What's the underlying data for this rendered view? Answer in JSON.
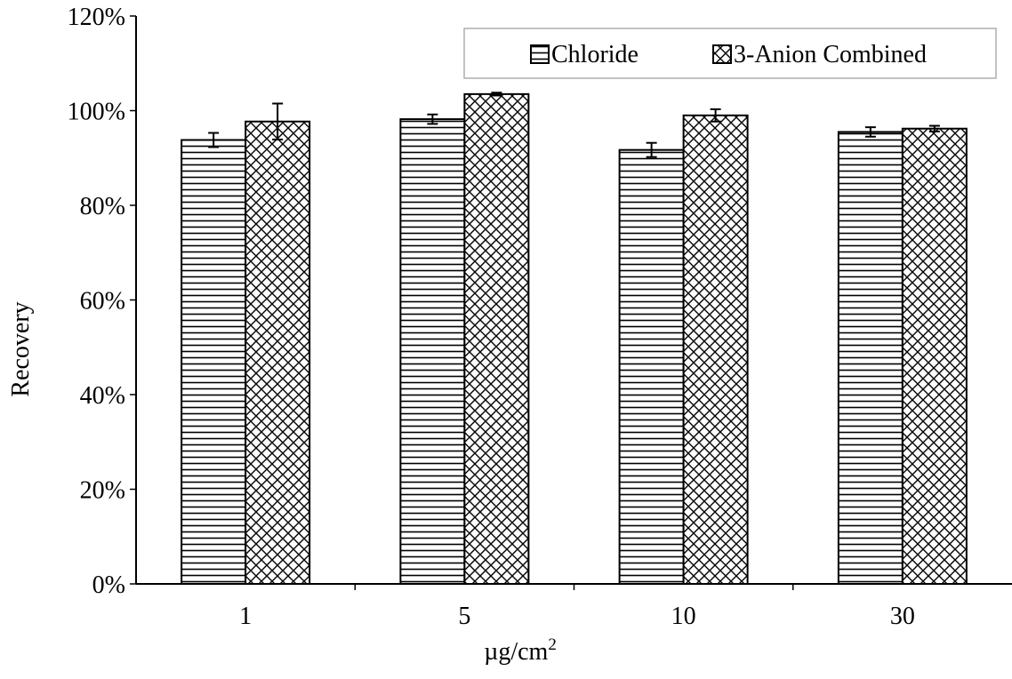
{
  "chart_data": {
    "type": "bar",
    "xlabel": "µg/cm",
    "xlabel_superscript": "2",
    "ylabel": "Recovery",
    "categories": [
      "1",
      "5",
      "10",
      "30"
    ],
    "ylim": [
      0,
      1.2
    ],
    "ytick_values": [
      0,
      0.2,
      0.4,
      0.6,
      0.8,
      1.0,
      1.2
    ],
    "ytick_labels": [
      "0%",
      "20%",
      "40%",
      "60%",
      "80%",
      "100%",
      "120%"
    ],
    "legend_position": "top-right",
    "grid": false,
    "series": [
      {
        "name": "Chloride",
        "pattern": "horizontal-lines",
        "values": [
          0.938,
          0.982,
          0.917,
          0.955
        ],
        "error": [
          0.015,
          0.01,
          0.015,
          0.01
        ]
      },
      {
        "name": "3-Anion Combined",
        "pattern": "crosshatch",
        "values": [
          0.977,
          1.035,
          0.99,
          0.962
        ],
        "error": [
          0.038,
          0.003,
          0.013,
          0.006
        ]
      }
    ]
  }
}
